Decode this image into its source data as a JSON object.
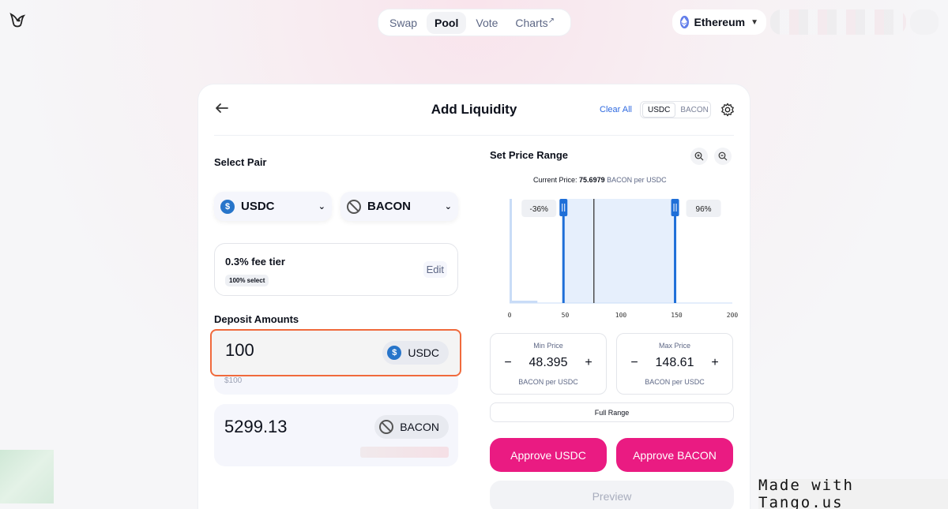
{
  "nav": {
    "tabs": [
      {
        "label": "Swap"
      },
      {
        "label": "Pool"
      },
      {
        "label": "Vote"
      },
      {
        "label": "Charts",
        "ext": "↗"
      }
    ],
    "network": "Ethereum"
  },
  "card": {
    "title": "Add Liquidity",
    "clear_all": "Clear All",
    "toggle": [
      "USDC",
      "BACON"
    ],
    "select_pair_label": "Select Pair",
    "pair": [
      "USDC",
      "BACON"
    ],
    "fee": {
      "title": "0.3% fee tier",
      "badge": "100% select",
      "edit": "Edit"
    },
    "deposit_label": "Deposit Amounts",
    "deposit": [
      {
        "value": "100",
        "sub": "$100",
        "token": "USDC"
      },
      {
        "value": "5299.13",
        "token": "BACON"
      }
    ],
    "price_range_label": "Set Price Range",
    "current_price": {
      "label": "Current Price:",
      "value": "75.6979",
      "unit": "BACON per USDC"
    },
    "chart_data": {
      "type": "area",
      "x_ticks": [
        "0",
        "50",
        "100",
        "150",
        "200"
      ],
      "xlim": [
        0,
        200
      ],
      "current_price": 75.6979,
      "min_price": 48.395,
      "max_price": 148.61,
      "min_label": "-36%",
      "max_label": "96%"
    },
    "min_price": {
      "label": "Min Price",
      "value": "48.395",
      "unit": "BACON per USDC"
    },
    "max_price": {
      "label": "Max Price",
      "value": "148.61",
      "unit": "BACON per USDC"
    },
    "full_range": "Full Range",
    "approve_usdc": "Approve USDC",
    "approve_bacon": "Approve BACON",
    "preview": "Preview"
  },
  "watermark": "Made with Tango.us",
  "colors": {
    "accent": "#ea1b82",
    "link": "#2f6ae0",
    "highlight": "#f06a3c",
    "range": "#1f6fd8"
  }
}
